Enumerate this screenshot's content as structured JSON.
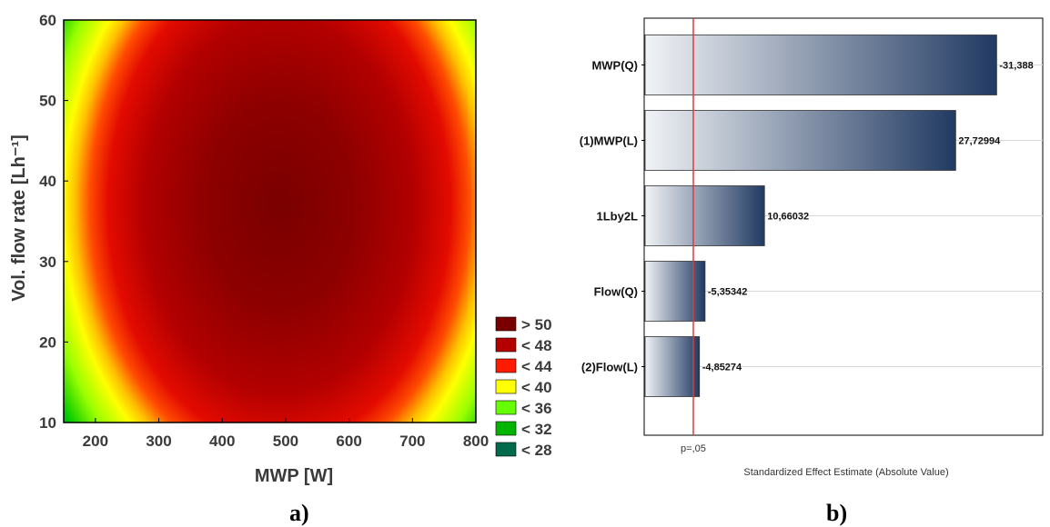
{
  "captions": {
    "a": "a)",
    "b": "b)"
  },
  "chart_data": [
    {
      "type": "heatmap",
      "subtype": "contour",
      "xlabel": "MWP [W]",
      "ylabel": "Vol. flow rate [Lh⁻¹]",
      "xlim": [
        150,
        800
      ],
      "ylim": [
        10,
        60
      ],
      "x_ticks": [
        "200",
        "300",
        "400",
        "500",
        "600",
        "700",
        "800"
      ],
      "y_ticks": [
        "10",
        "20",
        "30",
        "40",
        "50",
        "60"
      ],
      "peak": {
        "x": 490,
        "y": 37
      },
      "legend": {
        "placement": "bottom-right",
        "entries": [
          {
            "label": "> 50",
            "color": "#7a0000"
          },
          {
            "label": "< 48",
            "color": "#b50000"
          },
          {
            "label": "< 44",
            "color": "#ff1a00"
          },
          {
            "label": "< 40",
            "color": "#ffff00"
          },
          {
            "label": "< 36",
            "color": "#66ff00"
          },
          {
            "label": "< 32",
            "color": "#00b400"
          },
          {
            "label": "< 28",
            "color": "#006a4a"
          }
        ]
      }
    },
    {
      "type": "bar",
      "orientation": "horizontal",
      "xlabel": "Standardized Effect Estimate (Absolute Value)",
      "categories": [
        "MWP(Q)",
        "(1)MWP(L)",
        "1Lby2L",
        "Flow(Q)",
        "(2)Flow(L)"
      ],
      "values": [
        31.388,
        27.72994,
        10.66032,
        5.35342,
        4.85274
      ],
      "value_labels": [
        "-31,388",
        "27,72994",
        "10,66032",
        "-5,35342",
        "-4,85274"
      ],
      "xlim": [
        0,
        35.5
      ],
      "significance_line": {
        "value": 4.303,
        "label": "p=,05",
        "color": "#e03a3a"
      },
      "bar_gradient": [
        "#f1f3f6",
        "#213a62"
      ]
    }
  ]
}
